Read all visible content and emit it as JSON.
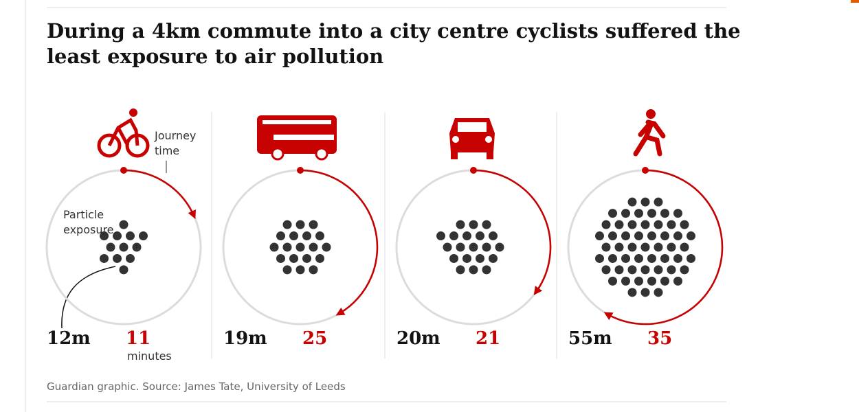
{
  "title": [
    "During a 4km commute into a city centre cyclists suffered the",
    "least exposure to air pollution"
  ],
  "journey_note": [
    "Journey",
    "time"
  ],
  "exposure_note": [
    "Particle",
    "exposure"
  ],
  "unit": "minutes",
  "panels": [
    {
      "exposure": {
        "value": 12,
        "label": "12m"
      },
      "journey_time": 11
    },
    {
      "exposure": {
        "value": 19,
        "label": "19m"
      },
      "journey_time": 25
    },
    {
      "exposure": {
        "value": 20,
        "label": "20m"
      },
      "journey_time": 21
    },
    {
      "exposure": {
        "value": 55,
        "label": "55m"
      },
      "journey_time": 35
    }
  ],
  "source": "Guardian graphic. Source: James Tate, University of Leeds"
}
